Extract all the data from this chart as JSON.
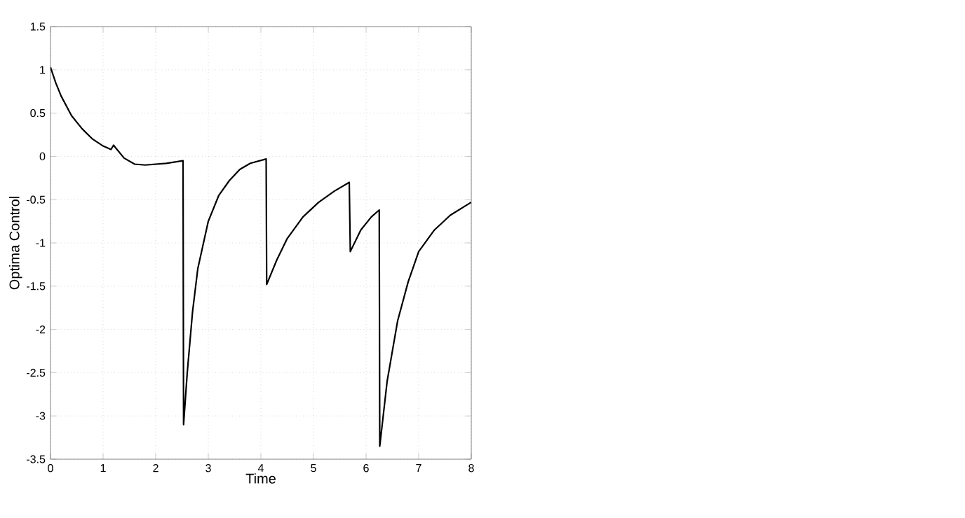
{
  "chart_data": {
    "type": "line",
    "xlabel": "Time",
    "ylabel": "Optima Control",
    "xlim": [
      0,
      8
    ],
    "ylim": [
      -3.5,
      1.5
    ],
    "xticks": [
      0,
      1,
      2,
      3,
      4,
      5,
      6,
      7,
      8
    ],
    "yticks": [
      -3.5,
      -3,
      -2.5,
      -2,
      -1.5,
      -1,
      -0.5,
      0,
      0.5,
      1,
      1.5
    ],
    "grid": true,
    "series": [
      {
        "color": "#000000",
        "x": [
          0,
          0.1,
          0.2,
          0.4,
          0.6,
          0.8,
          1.0,
          1.15,
          1.2,
          1.25,
          1.4,
          1.6,
          1.8,
          2.2,
          2.52,
          2.53,
          2.6,
          2.7,
          2.8,
          3.0,
          3.2,
          3.4,
          3.6,
          3.8,
          4.1,
          4.11,
          4.3,
          4.5,
          4.8,
          5.1,
          5.4,
          5.68,
          5.7,
          5.9,
          6.1,
          6.25,
          6.26,
          6.4,
          6.6,
          6.8,
          7.0,
          7.3,
          7.6,
          8.0
        ],
        "values": [
          1.03,
          0.85,
          0.7,
          0.47,
          0.32,
          0.2,
          0.12,
          0.08,
          0.13,
          0.09,
          -0.02,
          -0.09,
          -0.1,
          -0.08,
          -0.05,
          -3.1,
          -2.5,
          -1.8,
          -1.3,
          -0.75,
          -0.45,
          -0.28,
          -0.15,
          -0.08,
          -0.03,
          -1.48,
          -1.2,
          -0.95,
          -0.7,
          -0.53,
          -0.4,
          -0.3,
          -1.1,
          -0.85,
          -0.7,
          -0.62,
          -3.35,
          -2.6,
          -1.9,
          -1.45,
          -1.1,
          -0.85,
          -0.68,
          -0.53
        ]
      }
    ]
  }
}
